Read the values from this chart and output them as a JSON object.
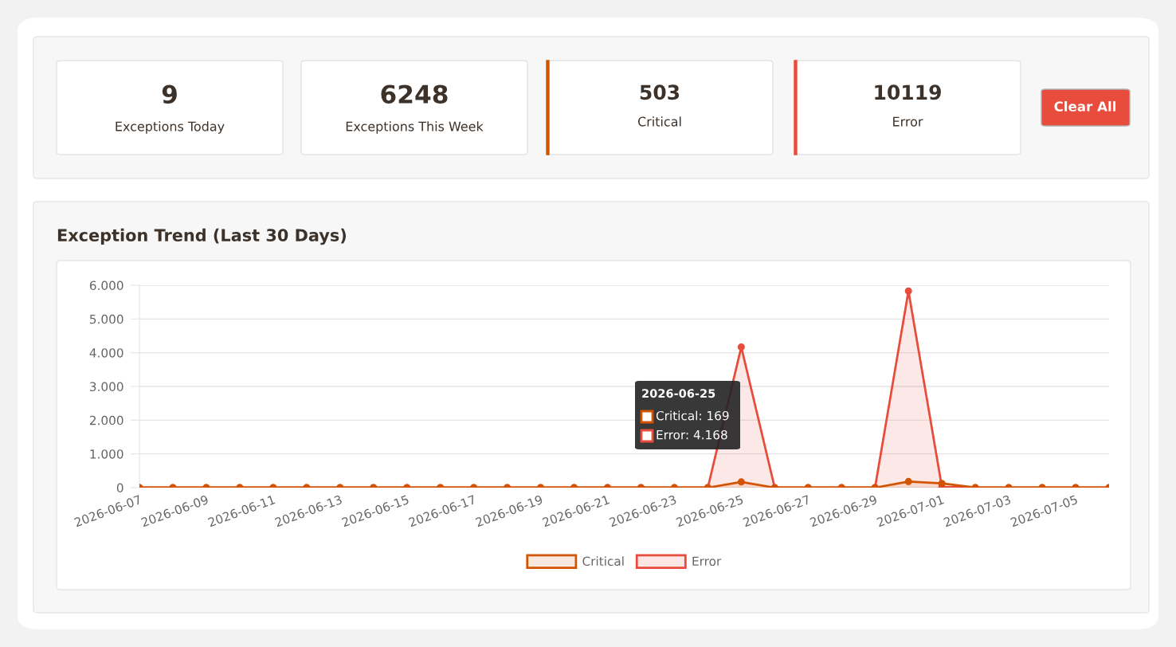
{
  "chart_data": [
    {
      "type": "other",
      "annotations": [
        "9",
        "Exceptions Today",
        "6248",
        "Exceptions This Week",
        "503",
        "Critical",
        "10119",
        "Error",
        "Clear All"
      ]
    },
    {
      "type": "area",
      "title": "Exception Trend (Last 30 Days)",
      "categories": [
        "2026-06-07",
        null,
        "2026-06-09",
        null,
        "2026-06-11",
        null,
        "2026-06-13",
        null,
        "2026-06-15",
        null,
        "2026-06-17",
        null,
        "2026-06-19",
        null,
        "2026-06-21",
        null,
        "2026-06-23",
        null,
        "2026-06-25",
        null,
        "2026-06-27",
        null,
        "2026-06-29",
        null,
        "2026-07-01",
        null,
        "2026-07-03",
        null,
        "2026-07-05",
        null
      ],
      "series": [
        {
          "name": "Critical",
          "color": "#d35400",
          "values": [
            0,
            0,
            0,
            0,
            0,
            0,
            0,
            0,
            0,
            0,
            0,
            0,
            0,
            0,
            0,
            0,
            0,
            0,
            169,
            0,
            0,
            0,
            0,
            180,
            125,
            0,
            0,
            0,
            0,
            0
          ]
        },
        {
          "name": "Error",
          "color": "#e74c3c",
          "values": [
            0,
            0,
            0,
            0,
            0,
            0,
            0,
            0,
            0,
            0,
            0,
            0,
            0,
            0,
            0,
            0,
            0,
            0,
            4168,
            0,
            0,
            0,
            0,
            5830,
            20,
            0,
            0,
            0,
            0,
            0
          ]
        }
      ],
      "ylim": [
        0,
        6000
      ],
      "yticks": [
        0,
        {
          "value": 1000,
          "label": "1.000"
        },
        {
          "value": 2000,
          "label": "2.000"
        },
        {
          "value": 3000,
          "label": "3.000"
        },
        {
          "value": 4000,
          "label": "4.000"
        },
        {
          "value": 5000,
          "label": "5.000"
        },
        {
          "value": 6000,
          "label": "6.000"
        }
      ],
      "grid": "y",
      "legend": "bottom",
      "marker": "circle",
      "annotations": [
        "2026-06-25",
        "Critical: 169",
        "Error: 4.168"
      ]
    }
  ]
}
